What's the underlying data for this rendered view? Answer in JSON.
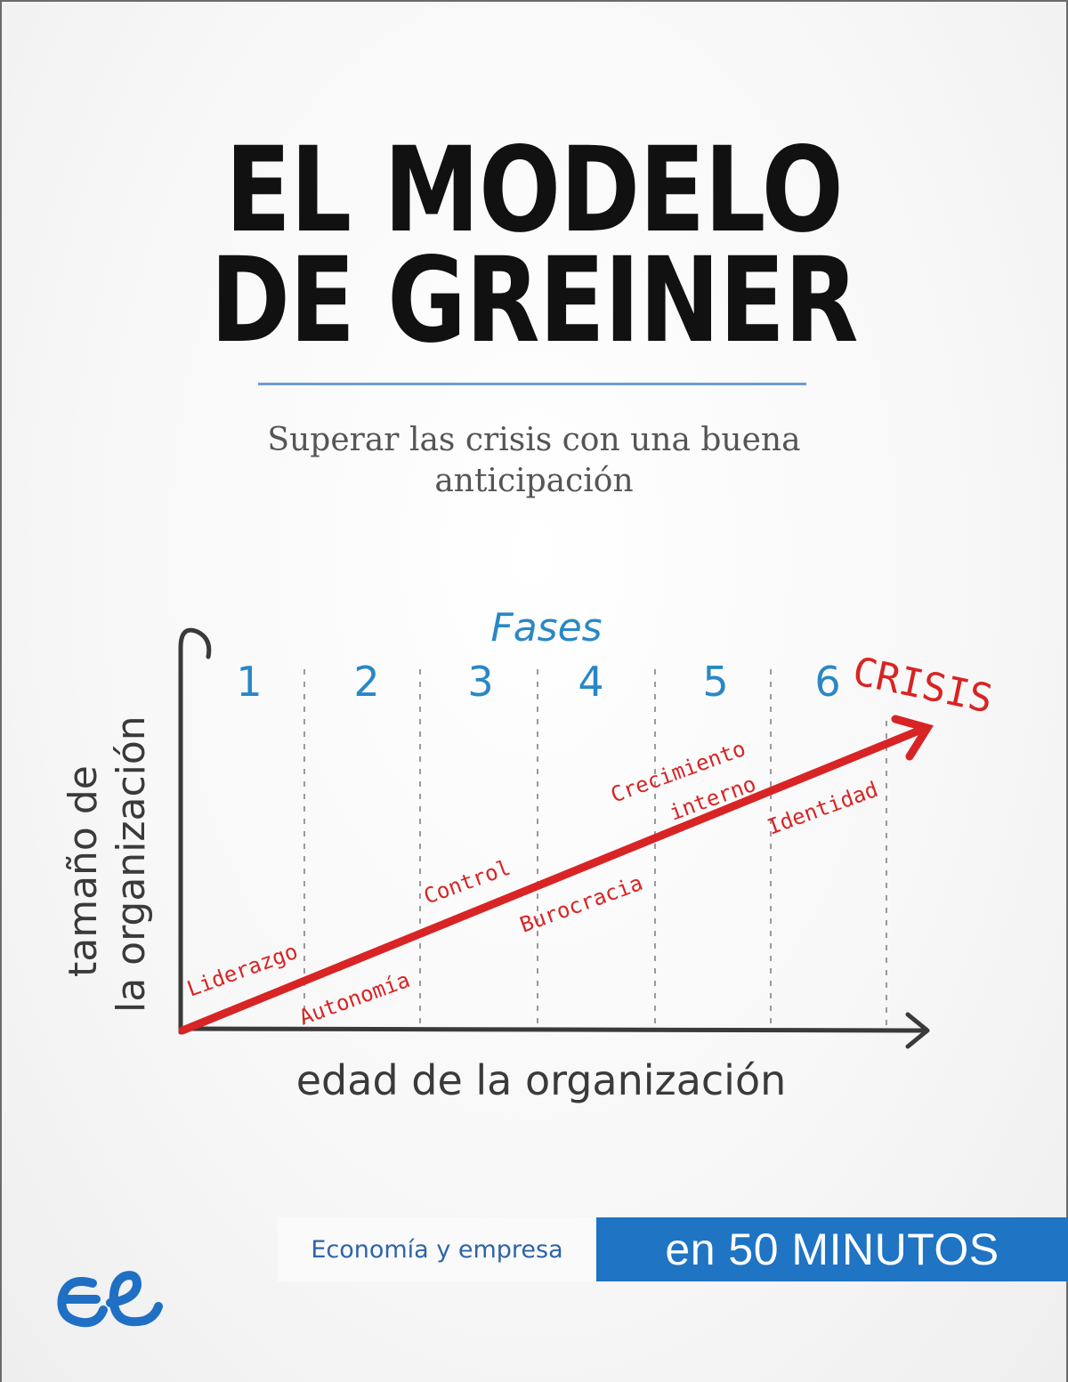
{
  "cover": {
    "title_line1": "EL MODELO",
    "title_line2": "DE GREINER",
    "subtitle_line1": "Superar las crisis con una buena",
    "subtitle_line2": "anticipación"
  },
  "diagram": {
    "header": "Fases",
    "phases": [
      "1",
      "2",
      "3",
      "4",
      "5",
      "6"
    ],
    "crisis_label": "CRISIS",
    "y_axis_line1": "tamaño de",
    "y_axis_line2": "la organización",
    "x_axis": "edad de la organización",
    "above_line": [
      "Liderazgo",
      "Control",
      "Crecimiento",
      "interno"
    ],
    "below_line": [
      "Autonomía",
      "Burocracia",
      "Identidad"
    ],
    "colors": {
      "phases": "#2a87c6",
      "arrow": "#d82424",
      "axes": "#3a3a3a"
    }
  },
  "banner": {
    "collection": "Economía y empresa",
    "series": "en 50 MINUTOS",
    "collection_color": "#2e64a9",
    "series_bg": "#1f74c4"
  },
  "logo": {
    "icon": "epublibre-logo-icon",
    "color": "#1f6fc4"
  }
}
